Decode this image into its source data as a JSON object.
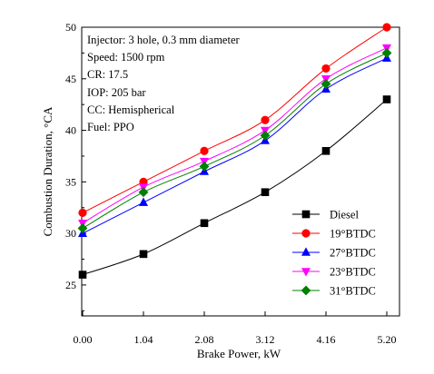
{
  "chart_data": {
    "type": "line",
    "xlabel": "Brake Power, kW",
    "ylabel": "Combustion Duration, °CA",
    "categories": [
      "0.00",
      "1.04",
      "2.08",
      "3.12",
      "4.16",
      "5.20"
    ],
    "x": [
      0.0,
      1.04,
      2.08,
      3.12,
      4.16,
      5.2
    ],
    "ylim": [
      22,
      50
    ],
    "yticks": [
      25,
      30,
      35,
      40,
      45,
      50
    ],
    "grid": false,
    "legend_position": "bottom-right",
    "annotations": [
      "Injector: 3 hole, 0.3 mm diameter",
      "Speed: 1500 rpm",
      "CR: 17.5",
      "IOP: 205 bar",
      "CC: Hemispherical",
      "Fuel: PPO"
    ],
    "series": [
      {
        "name": "Diesel",
        "marker": "square",
        "color": "#000000",
        "values": [
          26,
          28,
          31,
          34,
          38,
          43
        ]
      },
      {
        "name": "19°BTDC",
        "marker": "circle",
        "color": "#ff0000",
        "values": [
          32,
          35,
          38,
          41,
          46,
          50
        ]
      },
      {
        "name": "27°BTDC",
        "marker": "triangle-up",
        "color": "#0000ff",
        "values": [
          30,
          33,
          36,
          39,
          44,
          47
        ]
      },
      {
        "name": "23°BTDC",
        "marker": "triangle-down",
        "color": "#ff00ff",
        "values": [
          31,
          34.5,
          37,
          40,
          45,
          48
        ]
      },
      {
        "name": "31°BTDC",
        "marker": "diamond",
        "color": "#008000",
        "values": [
          30.5,
          34,
          36.5,
          39.5,
          44.5,
          47.5
        ]
      }
    ]
  }
}
